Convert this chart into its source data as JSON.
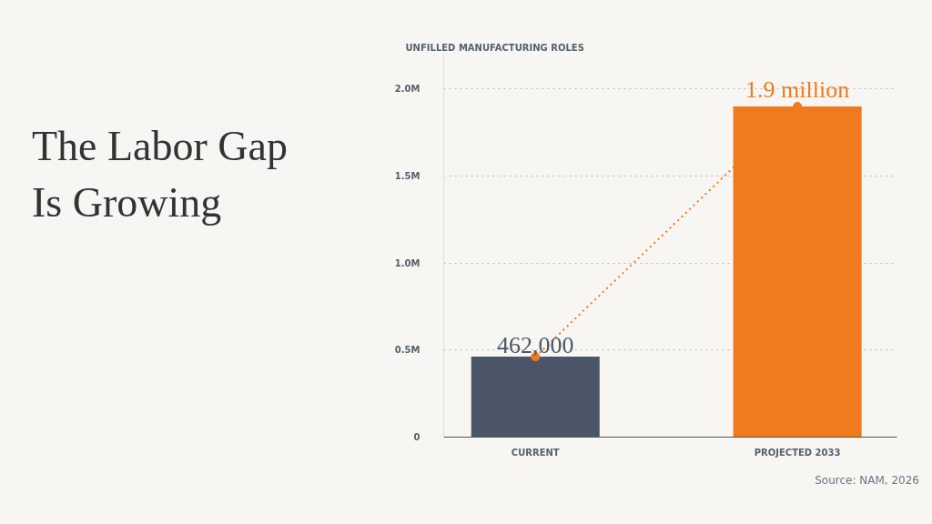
{
  "chart_data": {
    "type": "bar",
    "title": "The Labor Gap Is Growing",
    "ylabel": "UNFILLED MANUFACTURING ROLES",
    "categories": [
      "CURRENT",
      "PROJECTED 2033"
    ],
    "series": [
      {
        "colors": [
          "#4a5668",
          "#f07a1e"
        ],
        "values": [
          462000,
          1900000
        ],
        "value_labels": [
          "462,000",
          "1.9 million"
        ]
      },
      {
        "type": "line",
        "color": "#f07a1e",
        "line_style": "dotted",
        "marker": "circle",
        "values": [
          462000,
          1900000
        ]
      }
    ],
    "ylim": [
      0,
      2200000
    ],
    "yticks": [
      0,
      {
        "value": 500000,
        "label": "0.5M"
      },
      {
        "value": 1000000,
        "label": "1.0M"
      },
      {
        "value": 1500000,
        "label": "1.5M"
      },
      {
        "value": 2000000,
        "label": "2.0M"
      }
    ],
    "grid": "y",
    "annotations": [
      "Source: NAM, 2026"
    ]
  }
}
